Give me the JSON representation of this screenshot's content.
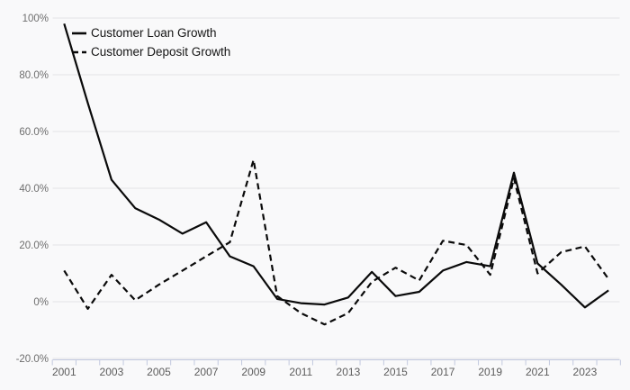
{
  "chart_data": {
    "type": "line",
    "title": "",
    "xlabel": "",
    "ylabel": "",
    "x": [
      2001,
      2002,
      2003,
      2004,
      2005,
      2006,
      2007,
      2008,
      2009,
      2010,
      2011,
      2012,
      2013,
      2014,
      2015,
      2016,
      2017,
      2018,
      2019,
      2020,
      2021,
      2022,
      2023,
      2024
    ],
    "series": [
      {
        "name": "Customer Loan Growth",
        "style": "solid",
        "values": [
          98,
          70,
          43,
          33,
          29,
          24,
          28,
          16,
          12.5,
          1,
          -0.5,
          -1,
          1.5,
          10.5,
          2,
          3.5,
          11,
          14,
          12.5,
          45.5,
          13.5,
          6,
          -2,
          4
        ]
      },
      {
        "name": "Customer Deposit Growth",
        "style": "dashed",
        "values": [
          11,
          -2.5,
          9.5,
          0.5,
          6,
          11,
          16,
          21,
          50,
          2,
          -4,
          -8,
          -4,
          7,
          12,
          7.5,
          21.5,
          20,
          9.5,
          43.5,
          10,
          17.5,
          19.5,
          8
        ]
      }
    ],
    "ylim": [
      -20,
      100
    ],
    "ytick_values": [
      100,
      80,
      60,
      40,
      20,
      0,
      -20
    ],
    "ytick_labels": [
      "100%",
      "80.0%",
      "60.0%",
      "40.0%",
      "20.0%",
      "0%",
      "-20.0%"
    ],
    "xtick_labels": [
      "2001",
      "2003",
      "2005",
      "2007",
      "2009",
      "2011",
      "2013",
      "2015",
      "2017",
      "2019",
      "2021",
      "2023"
    ],
    "grid": "horizontal-only",
    "legend_position": "top-left",
    "colors": {
      "background": "#f9f9fa",
      "line": "#0a0a0a",
      "grid": "#e4e4e7",
      "axis": "#c2c9df",
      "ytick_label": "#6e6e6e",
      "xtick_label": "#5c5c5c",
      "legend_text": "#141414"
    }
  }
}
